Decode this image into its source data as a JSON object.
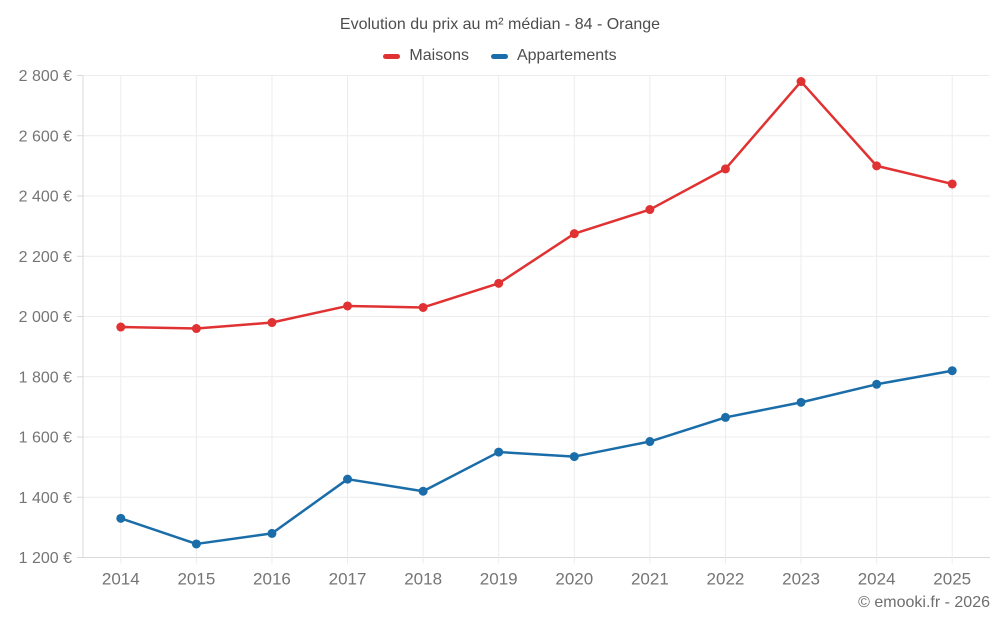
{
  "title": "Evolution du prix au m² médian - 84 - Orange",
  "footer": "© emooki.fr - 2026",
  "legend": [
    {
      "label": "Maisons",
      "color": "#e03232"
    },
    {
      "label": "Appartements",
      "color": "#1a6da8"
    }
  ],
  "colors": {
    "maisons": "#e03232",
    "appartements": "#1a6da8",
    "gridline": "#ececec",
    "axis_line": "#d9d9d9",
    "tick_text": "#757575",
    "title_text": "#4d4d4d",
    "footer_text": "#6e6e6e",
    "background": "#ffffff"
  },
  "chart_data": {
    "type": "line",
    "title": "Evolution du prix au m² médian - 84 - Orange",
    "xlabel": "",
    "ylabel": "",
    "categories": [
      "2014",
      "2015",
      "2016",
      "2017",
      "2018",
      "2019",
      "2020",
      "2021",
      "2022",
      "2023",
      "2024",
      "2025"
    ],
    "series": [
      {
        "name": "Maisons",
        "color": "#e03232",
        "values": [
          1965,
          1960,
          1980,
          2035,
          2030,
          2110,
          2275,
          2355,
          2490,
          2780,
          2500,
          2440
        ]
      },
      {
        "name": "Appartements",
        "color": "#1a6da8",
        "values": [
          1330,
          1245,
          1280,
          1460,
          1420,
          1550,
          1535,
          1585,
          1665,
          1715,
          1775,
          1820
        ]
      }
    ],
    "ylim": [
      1200,
      2800
    ],
    "ytick_values": [
      1200,
      1400,
      1600,
      1800,
      2000,
      2200,
      2400,
      2600,
      2800
    ],
    "ytick_labels": [
      "1 200 €",
      "1 400 €",
      "1 600 €",
      "1 800 €",
      "2 000 €",
      "2 200 €",
      "2 400 €",
      "2 600 €",
      "2 800 €"
    ],
    "currency_suffix": "€",
    "grid": true,
    "legend_position": "top"
  }
}
